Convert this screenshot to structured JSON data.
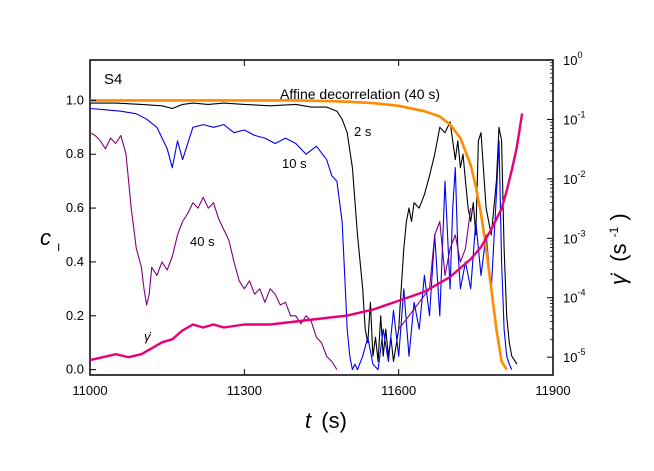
{
  "chart_data": {
    "type": "line",
    "panel_label": "S4",
    "xlabel_italic": "t",
    "xlabel_unit": "(s)",
    "ylabel_left_main": "c",
    "ylabel_left_sub": "I",
    "ylabel_right_main": "γ̇",
    "ylabel_right_unit_open": "(s",
    "ylabel_right_unit_exp": "-1",
    "ylabel_right_unit_close": ")",
    "xlim": [
      11000,
      11900
    ],
    "ylim_left": [
      -0.02,
      1.15
    ],
    "ylim_right_log10": [
      -5.3,
      0
    ],
    "x_ticks": [
      11000,
      11300,
      11600,
      11900
    ],
    "x_tick_labels": [
      "11000",
      "11300",
      "11600",
      "11900"
    ],
    "y_left_ticks": [
      0.0,
      0.2,
      0.4,
      0.6,
      0.8,
      1.0
    ],
    "y_left_tick_labels": [
      "0.0",
      "0.2",
      "0.4",
      "0.6",
      "0.8",
      "1.0"
    ],
    "y_right_ticks_log10": [
      -5,
      -4,
      -3,
      -2,
      -1,
      0
    ],
    "y_right_tick_base": [
      "10",
      "10",
      "10",
      "10",
      "10",
      "10"
    ],
    "y_right_tick_exp": [
      "-5",
      "-4",
      "-3",
      "-2",
      "-1",
      "0"
    ],
    "annotations": {
      "label_2s": "2 s",
      "label_10s": "10 s",
      "label_40s": "40 s",
      "affine": "Affine decorrelation (40 s)",
      "gamma_dot": "γ̇"
    },
    "colors": {
      "c2s": "#000000",
      "c10s": "#0000ee",
      "c40s": "#800080",
      "affine": "#ff8c00",
      "gamma": "#e8007a"
    },
    "series": [
      {
        "name": "2 s",
        "axis": "left",
        "x": [
          11000,
          11050,
          11100,
          11140,
          11160,
          11180,
          11200,
          11230,
          11260,
          11300,
          11350,
          11400,
          11430,
          11460,
          11480,
          11490,
          11500,
          11510,
          11520,
          11530,
          11535,
          11540,
          11545,
          11550,
          11555,
          11560,
          11565,
          11570,
          11575,
          11580,
          11585,
          11590,
          11600,
          11605,
          11610,
          11615,
          11620,
          11625,
          11630,
          11640,
          11650,
          11660,
          11670,
          11680,
          11690,
          11700,
          11705,
          11710,
          11715,
          11720,
          11725,
          11730,
          11735,
          11740,
          11745,
          11750,
          11755,
          11760,
          11770,
          11780,
          11790,
          11795,
          11800,
          11805,
          11810,
          11815,
          11820,
          11830
        ],
        "y": [
          0.99,
          0.99,
          0.985,
          0.98,
          0.97,
          0.985,
          0.99,
          0.985,
          0.99,
          0.985,
          0.98,
          0.985,
          0.975,
          0.975,
          0.96,
          0.93,
          0.88,
          0.75,
          0.5,
          0.3,
          0.15,
          0.1,
          0.25,
          0.05,
          0.12,
          0.03,
          0.2,
          0.05,
          0.15,
          0.05,
          0.12,
          0.03,
          0.15,
          0.3,
          0.45,
          0.55,
          0.6,
          0.55,
          0.62,
          0.6,
          0.65,
          0.72,
          0.8,
          0.9,
          0.88,
          0.92,
          0.85,
          0.78,
          0.85,
          0.75,
          0.8,
          0.7,
          0.6,
          0.55,
          0.62,
          0.5,
          0.85,
          0.88,
          0.6,
          0.5,
          0.7,
          0.9,
          0.85,
          0.45,
          0.2,
          0.1,
          0.05,
          0.02
        ]
      },
      {
        "name": "10 s",
        "axis": "left",
        "x": [
          11000,
          11030,
          11060,
          11090,
          11110,
          11130,
          11150,
          11160,
          11170,
          11180,
          11200,
          11220,
          11240,
          11260,
          11280,
          11300,
          11320,
          11340,
          11360,
          11380,
          11400,
          11420,
          11440,
          11460,
          11470,
          11480,
          11490,
          11495,
          11500,
          11505,
          11510,
          11515,
          11520,
          11530,
          11540,
          11550,
          11560,
          11570,
          11580,
          11590,
          11600,
          11610,
          11620,
          11630,
          11640,
          11650,
          11660,
          11670,
          11680,
          11690,
          11700,
          11705,
          11710,
          11715,
          11720,
          11730,
          11740,
          11750,
          11760,
          11770,
          11780,
          11790,
          11795,
          11800,
          11805,
          11810,
          11815,
          11820
        ],
        "y": [
          0.97,
          0.965,
          0.96,
          0.95,
          0.93,
          0.9,
          0.82,
          0.75,
          0.85,
          0.78,
          0.9,
          0.91,
          0.9,
          0.91,
          0.88,
          0.89,
          0.87,
          0.86,
          0.84,
          0.86,
          0.84,
          0.8,
          0.83,
          0.78,
          0.72,
          0.7,
          0.55,
          0.35,
          0.15,
          0.05,
          0.0,
          0.02,
          0.0,
          0.05,
          0.12,
          0.02,
          0.0,
          0.15,
          0.03,
          0.22,
          0.05,
          0.3,
          0.05,
          0.25,
          0.15,
          0.35,
          0.2,
          0.5,
          0.2,
          0.7,
          0.3,
          0.6,
          0.75,
          0.45,
          0.3,
          0.4,
          0.3,
          0.55,
          0.35,
          0.5,
          0.3,
          0.65,
          0.85,
          0.4,
          0.15,
          0.05,
          0.02,
          0.0
        ]
      },
      {
        "name": "40 s",
        "axis": "left",
        "x": [
          11000,
          11010,
          11020,
          11030,
          11040,
          11050,
          11060,
          11070,
          11080,
          11090,
          11100,
          11105,
          11110,
          11115,
          11120,
          11130,
          11140,
          11150,
          11160,
          11170,
          11180,
          11190,
          11200,
          11210,
          11220,
          11230,
          11240,
          11250,
          11260,
          11270,
          11280,
          11290,
          11300,
          11310,
          11320,
          11330,
          11340,
          11350,
          11360,
          11370,
          11380,
          11390,
          11400,
          11410,
          11420,
          11430,
          11440,
          11450,
          11460,
          11470,
          11480
        ],
        "y": [
          0.88,
          0.87,
          0.85,
          0.82,
          0.86,
          0.84,
          0.87,
          0.8,
          0.6,
          0.45,
          0.38,
          0.3,
          0.24,
          0.28,
          0.38,
          0.35,
          0.4,
          0.37,
          0.42,
          0.5,
          0.55,
          0.58,
          0.62,
          0.6,
          0.64,
          0.6,
          0.62,
          0.56,
          0.52,
          0.48,
          0.4,
          0.33,
          0.3,
          0.33,
          0.28,
          0.3,
          0.25,
          0.3,
          0.28,
          0.24,
          0.25,
          0.2,
          0.2,
          0.17,
          0.2,
          0.18,
          0.12,
          0.1,
          0.05,
          0.03,
          0.0
        ]
      },
      {
        "name": "40 s (late)",
        "axis": "left",
        "x": [
          11600,
          11620,
          11640,
          11660,
          11670,
          11680,
          11690,
          11700,
          11710,
          11720,
          11730,
          11740
        ],
        "y": [
          0.15,
          0.2,
          0.25,
          0.3,
          0.5,
          0.55,
          0.35,
          0.45,
          0.5,
          0.4,
          0.45,
          0.6
        ]
      },
      {
        "name": "Affine decorrelation (40 s)",
        "axis": "left",
        "x": [
          11000,
          11100,
          11200,
          11300,
          11400,
          11450,
          11500,
          11550,
          11600,
          11650,
          11680,
          11700,
          11720,
          11740,
          11750,
          11760,
          11770,
          11780,
          11790,
          11800,
          11810
        ],
        "y": [
          1.0,
          1.0,
          1.0,
          1.0,
          1.0,
          0.998,
          0.995,
          0.99,
          0.98,
          0.96,
          0.94,
          0.91,
          0.86,
          0.76,
          0.68,
          0.58,
          0.45,
          0.3,
          0.15,
          0.03,
          0.0
        ]
      },
      {
        "name": "gamma_dot",
        "axis": "right",
        "x": [
          11000,
          11025,
          11050,
          11075,
          11100,
          11120,
          11140,
          11160,
          11180,
          11200,
          11220,
          11240,
          11260,
          11300,
          11350,
          11400,
          11450,
          11500,
          11550,
          11600,
          11650,
          11700,
          11720,
          11740,
          11760,
          11780,
          11800,
          11810,
          11820,
          11830,
          11840
        ],
        "y_log10": [
          -5.05,
          -5.0,
          -4.95,
          -5.0,
          -4.95,
          -4.85,
          -4.75,
          -4.7,
          -4.55,
          -4.45,
          -4.5,
          -4.45,
          -4.5,
          -4.45,
          -4.45,
          -4.4,
          -4.35,
          -4.3,
          -4.2,
          -4.05,
          -3.9,
          -3.65,
          -3.5,
          -3.35,
          -3.15,
          -2.85,
          -2.5,
          -2.2,
          -1.85,
          -1.45,
          -0.9
        ]
      }
    ]
  }
}
